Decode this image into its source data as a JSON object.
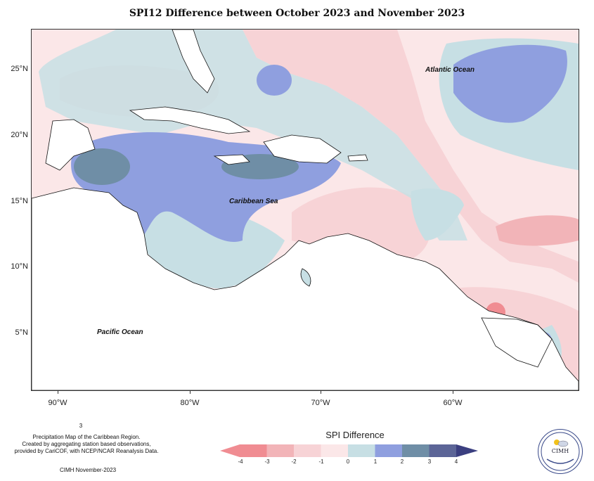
{
  "title": "SPI12 Difference between October 2023 and November 2023",
  "map": {
    "ocean_labels": {
      "atlantic": "Atlantic Ocean",
      "caribbean": "Caribbean Sea",
      "pacific": "Pacific Ocean"
    },
    "lat_labels": [
      "25°N",
      "20°N",
      "15°N",
      "10°N",
      "5°N"
    ],
    "lon_labels": [
      "90°W",
      "80°W",
      "70°W",
      "60°W"
    ]
  },
  "footer": {
    "superscript": "3",
    "line1": "Precipitation Map of the Caribbean Region.",
    "line2": "Created by aggregating station based observations,",
    "line3": "provided by CariCOF, with NCEP/NCAR Reanalysis Data.",
    "credit": "CIMH November-2023"
  },
  "legend": {
    "title": "SPI Difference",
    "labels": [
      "-4",
      "-3",
      "-2",
      "-1",
      "0",
      "1",
      "2",
      "3",
      "4"
    ],
    "colors": [
      "#f08c92",
      "#f2b4b8",
      "#f7d3d6",
      "#fbe7e8",
      "#c7dfe4",
      "#8f9fdf",
      "#6f8ea6",
      "#5c6597",
      "#3b3f80"
    ]
  },
  "logo": {
    "text": "CIMH",
    "icon": "sun-cloud-icon"
  }
}
